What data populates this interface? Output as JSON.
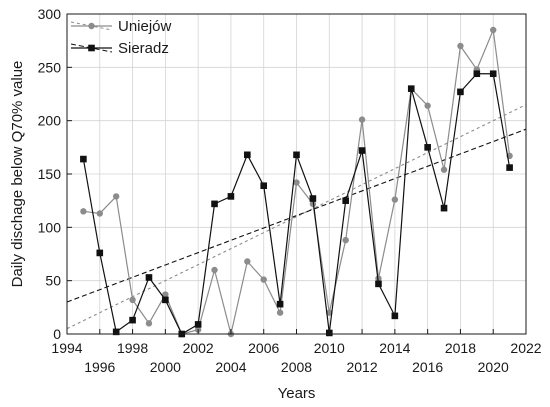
{
  "chart_data": {
    "type": "line",
    "xlabel": "Years",
    "ylabel": "Daily dischage below Q70% value",
    "xlim": [
      1994,
      2022
    ],
    "ylim": [
      0,
      300
    ],
    "x_ticks_top": [
      1994,
      1998,
      2002,
      2006,
      2010,
      2014,
      2018,
      2022
    ],
    "x_ticks_bottom": [
      1996,
      2000,
      2004,
      2008,
      2012,
      2016,
      2020
    ],
    "y_ticks": [
      0,
      50,
      100,
      150,
      200,
      250,
      300
    ],
    "grid": true,
    "legend_position": "top-left",
    "x": [
      1995,
      1996,
      1997,
      1998,
      1999,
      2000,
      2001,
      2002,
      2003,
      2004,
      2005,
      2006,
      2007,
      2008,
      2009,
      2010,
      2011,
      2012,
      2013,
      2014,
      2015,
      2016,
      2017,
      2018,
      2019,
      2020,
      2021
    ],
    "series": [
      {
        "name": "Uniejów",
        "color": "#8c8c8c",
        "marker": "circle",
        "values": [
          115,
          113,
          129,
          32,
          10,
          37,
          0,
          4,
          60,
          0,
          68,
          51,
          20,
          142,
          122,
          20,
          88,
          201,
          52,
          126,
          230,
          214,
          154,
          270,
          248,
          285,
          167
        ],
        "trend": {
          "start": [
            1994,
            5
          ],
          "end": [
            2022,
            215
          ],
          "dash": "3,3"
        }
      },
      {
        "name": "Sieradz",
        "color": "#111111",
        "marker": "square",
        "values": [
          164,
          76,
          2,
          13,
          53,
          32,
          0,
          9,
          122,
          129,
          168,
          139,
          28,
          168,
          127,
          1,
          125,
          172,
          47,
          17,
          230,
          175,
          118,
          227,
          244,
          244,
          156
        ],
        "trend": {
          "start": [
            1994,
            30
          ],
          "end": [
            2022,
            192
          ],
          "dash": "5,3"
        }
      }
    ]
  }
}
